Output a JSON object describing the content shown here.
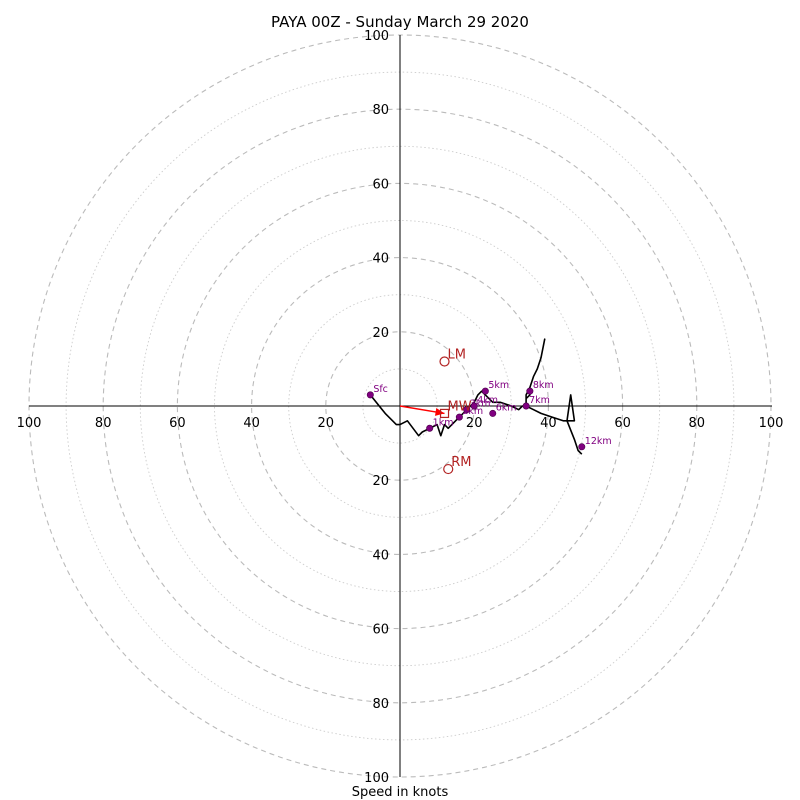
{
  "chart_data": {
    "type": "scatter",
    "title": "PAYA 00Z - Sunday March 29 2020",
    "xlabel": "Speed in knots",
    "ylabel": "",
    "xlim": [
      -100,
      100
    ],
    "ylim": [
      -100,
      100
    ],
    "grid": true,
    "tick_labels": [
      "100",
      "80",
      "60",
      "40",
      "20",
      "20",
      "40",
      "60",
      "80",
      "100"
    ],
    "ring_values": [
      20,
      40,
      60,
      80,
      100
    ],
    "hodograph": {
      "x": [
        -8,
        -4,
        -2,
        -1,
        0,
        2,
        5,
        6,
        8,
        10,
        11,
        12,
        13,
        14,
        15,
        16,
        17,
        18,
        19,
        20,
        21,
        22,
        23,
        24,
        25,
        27,
        30,
        32,
        33,
        34,
        34,
        35,
        36,
        37,
        38,
        39,
        38,
        37,
        36,
        35,
        35,
        34,
        34,
        34,
        36,
        38,
        41,
        44,
        47,
        46,
        45,
        47,
        48,
        49
      ],
      "y": [
        3,
        -2,
        -4,
        -5,
        -5,
        -4,
        -8,
        -7,
        -6,
        -5,
        -8,
        -5,
        -6,
        -5,
        -4,
        -3,
        -2,
        -1,
        0,
        1,
        3,
        4,
        3,
        2,
        1,
        1,
        0,
        -1,
        0,
        0,
        3,
        5,
        8,
        10,
        13,
        18,
        13,
        10,
        8,
        5,
        3,
        2,
        1,
        0,
        -1,
        -2,
        -3,
        -4,
        -4,
        3,
        -4,
        -9,
        -12,
        -13
      ]
    },
    "height_markers": [
      {
        "label": "Sfc",
        "x": -8,
        "y": 3
      },
      {
        "label": "1km",
        "x": 8,
        "y": -6
      },
      {
        "label": "2km",
        "x": 16,
        "y": -3
      },
      {
        "label": "3km",
        "x": 18,
        "y": -1
      },
      {
        "label": "4km",
        "x": 20,
        "y": 0
      },
      {
        "label": "5km",
        "x": 23,
        "y": 4
      },
      {
        "label": "6km",
        "x": 25,
        "y": -2
      },
      {
        "label": "7km",
        "x": 34,
        "y": 0
      },
      {
        "label": "8km",
        "x": 35,
        "y": 4
      },
      {
        "label": "12km",
        "x": 49,
        "y": -11
      }
    ],
    "storm_motions": [
      {
        "label": "LM",
        "x": 12,
        "y": 12
      },
      {
        "label": "RM",
        "x": 13,
        "y": -17
      },
      {
        "label": "MW",
        "x": 12,
        "y": -2
      }
    ],
    "shear_vector": {
      "x1": 0,
      "y1": 0,
      "x2": 12,
      "y2": -2
    },
    "colors": {
      "hodograph": "#000000",
      "markers": "#800080",
      "storm": "#b22222",
      "shear": "#ff0000",
      "grid": "#bbbbbb"
    }
  }
}
